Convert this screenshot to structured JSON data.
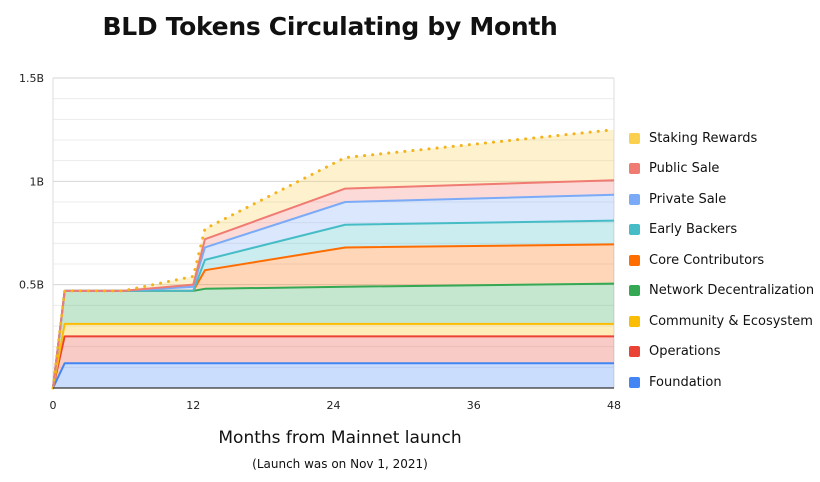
{
  "chart_data": {
    "type": "area",
    "stacked": true,
    "title": "BLD Tokens Circulating by Month",
    "xlabel": "Months from Mainnet launch",
    "xlabel_note": "(Launch was on Nov 1, 2021)",
    "ylabel": "",
    "xlim": [
      0,
      48
    ],
    "ylim": [
      0,
      1500000000
    ],
    "x_ticks": [
      "0",
      "12",
      "24",
      "36",
      "48"
    ],
    "y_ticks": [
      "0.5B",
      "1B",
      "1.5B"
    ],
    "grid": true,
    "legend_position": "right",
    "x": [
      0,
      1,
      6,
      12,
      13,
      25,
      48
    ],
    "series": [
      {
        "name": "Foundation",
        "color": "#4285f4",
        "values": [
          0,
          120000000,
          120000000,
          120000000,
          120000000,
          120000000,
          120000000
        ]
      },
      {
        "name": "Operations",
        "color": "#ea4335",
        "values": [
          0,
          130000000,
          130000000,
          130000000,
          130000000,
          130000000,
          130000000
        ]
      },
      {
        "name": "Community & Ecosystem",
        "color": "#fbbc04",
        "values": [
          0,
          60000000,
          60000000,
          60000000,
          60000000,
          60000000,
          60000000
        ]
      },
      {
        "name": "Network Decentralization",
        "color": "#34a853",
        "values": [
          0,
          160000000,
          160000000,
          160000000,
          170000000,
          180000000,
          195000000
        ]
      },
      {
        "name": "Core Contributors",
        "color": "#ff6d01",
        "values": [
          0,
          0,
          0,
          0,
          90000000,
          190000000,
          190000000
        ]
      },
      {
        "name": "Early Backers",
        "color": "#46bdc6",
        "values": [
          0,
          0,
          0,
          0,
          50000000,
          110000000,
          115000000
        ]
      },
      {
        "name": "Private Sale",
        "color": "#7baaf7",
        "values": [
          0,
          0,
          0,
          20000000,
          60000000,
          110000000,
          125000000
        ]
      },
      {
        "name": "Public Sale",
        "color": "#f07b72",
        "values": [
          0,
          0,
          0,
          10000000,
          40000000,
          65000000,
          70000000
        ]
      },
      {
        "name": "Staking Rewards",
        "color": "#fcd04f",
        "values": [
          0,
          0,
          0,
          40000000,
          50000000,
          150000000,
          245000000
        ],
        "style": "dotted-top"
      }
    ]
  }
}
